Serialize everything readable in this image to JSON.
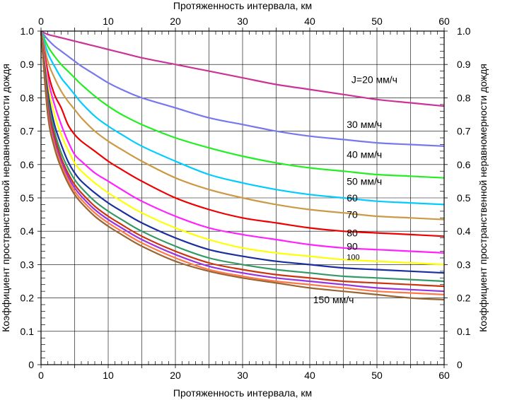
{
  "chart_data": {
    "type": "line",
    "title": "",
    "xlabel": "Протяженность интервала, км",
    "ylabel": "Коэффициент пространственной неравномерности дождя",
    "xlim": [
      0,
      60
    ],
    "ylim": [
      0,
      1.0
    ],
    "x_ticks": [
      "0",
      "10",
      "20",
      "30",
      "40",
      "50",
      "60"
    ],
    "y_ticks": [
      "0",
      "0.1",
      "0.2",
      "0.3",
      "0.4",
      "0.5",
      "0.6",
      "0.7",
      "0.8",
      "0.9",
      "1.0"
    ],
    "grid": true,
    "x": [
      0,
      1,
      2,
      3,
      4,
      5,
      6,
      8,
      10,
      12,
      15,
      20,
      25,
      30,
      35,
      40,
      45,
      50,
      55,
      60
    ],
    "series": [
      {
        "label": "J=20 мм/ч",
        "color": "#cc3399",
        "values": [
          1.0,
          0.99,
          0.985,
          0.98,
          0.975,
          0.97,
          0.965,
          0.955,
          0.945,
          0.935,
          0.92,
          0.9,
          0.88,
          0.86,
          0.84,
          0.825,
          0.81,
          0.795,
          0.785,
          0.775
        ]
      },
      {
        "label": "30 мм/ч",
        "color": "#7777ee",
        "values": [
          1.0,
          0.975,
          0.955,
          0.94,
          0.925,
          0.91,
          0.895,
          0.87,
          0.845,
          0.825,
          0.8,
          0.77,
          0.74,
          0.72,
          0.7,
          0.685,
          0.675,
          0.665,
          0.66,
          0.655
        ]
      },
      {
        "label": "40 мм/ч",
        "color": "#22ee22",
        "values": [
          1.0,
          0.955,
          0.925,
          0.9,
          0.88,
          0.86,
          0.84,
          0.805,
          0.775,
          0.75,
          0.72,
          0.68,
          0.65,
          0.625,
          0.605,
          0.59,
          0.58,
          0.57,
          0.565,
          0.56
        ]
      },
      {
        "label": "50 мм/ч",
        "color": "#00ccff",
        "values": [
          1.0,
          0.935,
          0.895,
          0.86,
          0.835,
          0.81,
          0.785,
          0.745,
          0.715,
          0.69,
          0.655,
          0.61,
          0.57,
          0.545,
          0.525,
          0.51,
          0.5,
          0.49,
          0.485,
          0.48
        ]
      },
      {
        "label": "60",
        "color": "#cc9944",
        "values": [
          1.0,
          0.91,
          0.86,
          0.82,
          0.79,
          0.765,
          0.74,
          0.7,
          0.67,
          0.645,
          0.61,
          0.56,
          0.525,
          0.5,
          0.48,
          0.465,
          0.455,
          0.445,
          0.44,
          0.435
        ]
      },
      {
        "label": "70",
        "color": "#ee0000",
        "values": [
          1.0,
          0.88,
          0.81,
          0.77,
          0.72,
          0.69,
          0.67,
          0.64,
          0.61,
          0.585,
          0.55,
          0.5,
          0.465,
          0.44,
          0.425,
          0.41,
          0.4,
          0.395,
          0.39,
          0.385
        ]
      },
      {
        "label": "80",
        "color": "#ff22ff",
        "values": [
          1.0,
          0.86,
          0.78,
          0.72,
          0.67,
          0.63,
          0.61,
          0.575,
          0.55,
          0.525,
          0.49,
          0.445,
          0.41,
          0.39,
          0.375,
          0.36,
          0.35,
          0.345,
          0.34,
          0.335
        ]
      },
      {
        "label": "90",
        "color": "#ffff00",
        "values": [
          1.0,
          0.84,
          0.75,
          0.69,
          0.645,
          0.605,
          0.58,
          0.545,
          0.515,
          0.49,
          0.455,
          0.41,
          0.375,
          0.35,
          0.335,
          0.325,
          0.315,
          0.31,
          0.305,
          0.3
        ]
      },
      {
        "label": "100",
        "color": "#1a2ea0",
        "values": [
          1.0,
          0.82,
          0.72,
          0.66,
          0.61,
          0.575,
          0.55,
          0.515,
          0.485,
          0.46,
          0.425,
          0.38,
          0.345,
          0.325,
          0.31,
          0.3,
          0.29,
          0.285,
          0.28,
          0.275
        ]
      },
      {
        "label": "",
        "color": "#339966",
        "values": [
          1.0,
          0.8,
          0.7,
          0.635,
          0.59,
          0.555,
          0.53,
          0.49,
          0.46,
          0.435,
          0.4,
          0.355,
          0.32,
          0.3,
          0.285,
          0.275,
          0.265,
          0.26,
          0.255,
          0.25
        ]
      },
      {
        "label": "",
        "color": "#cc3311",
        "values": [
          1.0,
          0.785,
          0.685,
          0.62,
          0.575,
          0.54,
          0.515,
          0.475,
          0.445,
          0.42,
          0.385,
          0.34,
          0.305,
          0.285,
          0.27,
          0.26,
          0.25,
          0.245,
          0.24,
          0.235
        ]
      },
      {
        "label": "",
        "color": "#9933dd",
        "values": [
          1.0,
          0.77,
          0.67,
          0.61,
          0.565,
          0.53,
          0.505,
          0.465,
          0.435,
          0.41,
          0.375,
          0.33,
          0.295,
          0.275,
          0.26,
          0.25,
          0.24,
          0.23,
          0.225,
          0.22
        ]
      },
      {
        "label": "",
        "color": "#ff7744",
        "values": [
          1.0,
          0.76,
          0.66,
          0.6,
          0.555,
          0.52,
          0.495,
          0.455,
          0.425,
          0.4,
          0.365,
          0.32,
          0.285,
          0.265,
          0.25,
          0.24,
          0.23,
          0.22,
          0.215,
          0.21
        ]
      },
      {
        "label": "150 мм/ч",
        "color": "#996633",
        "values": [
          1.0,
          0.75,
          0.65,
          0.59,
          0.545,
          0.51,
          0.485,
          0.445,
          0.415,
          0.39,
          0.355,
          0.31,
          0.28,
          0.26,
          0.245,
          0.23,
          0.22,
          0.21,
          0.2,
          0.195
        ]
      }
    ],
    "annotations": [
      {
        "text": "J=20 мм/ч",
        "x": 46.2,
        "y": 0.855,
        "size": "normal"
      },
      {
        "text": "30 мм/ч",
        "x": 45.5,
        "y": 0.72,
        "size": "normal"
      },
      {
        "text": "40 мм/ч",
        "x": 45.5,
        "y": 0.63,
        "size": "normal"
      },
      {
        "text": "50 мм/ч",
        "x": 45.5,
        "y": 0.55,
        "size": "normal"
      },
      {
        "text": "60",
        "x": 45.5,
        "y": 0.5,
        "size": "normal"
      },
      {
        "text": "70",
        "x": 45.5,
        "y": 0.45,
        "size": "normal"
      },
      {
        "text": "80",
        "x": 45.5,
        "y": 0.395,
        "size": "normal"
      },
      {
        "text": "90",
        "x": 45.5,
        "y": 0.355,
        "size": "normal"
      },
      {
        "text": "100",
        "x": 45.5,
        "y": 0.325,
        "size": "small"
      },
      {
        "text": "150 мм/ч",
        "x": 40.5,
        "y": 0.195,
        "size": "normal"
      }
    ]
  }
}
